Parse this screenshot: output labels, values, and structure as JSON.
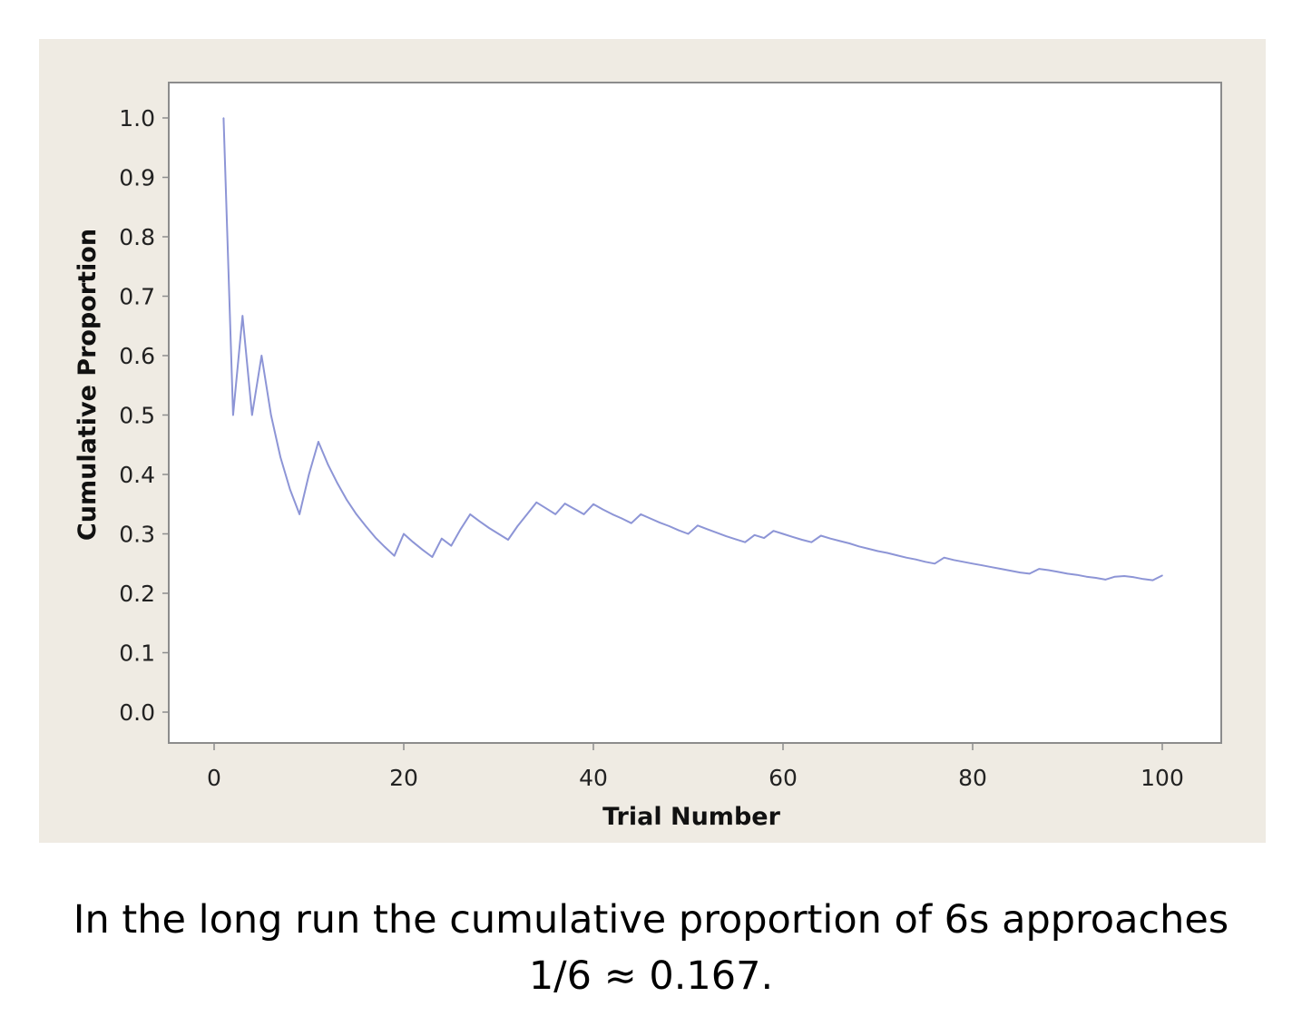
{
  "chart_data": {
    "type": "line",
    "xlabel": "Trial Number",
    "ylabel": "Cumulative Proportion",
    "xlim": [
      0,
      100
    ],
    "ylim": [
      0.0,
      1.0
    ],
    "xticks": [
      "0",
      "20",
      "40",
      "60",
      "80",
      "100"
    ],
    "yticks": [
      "0.0",
      "0.1",
      "0.2",
      "0.3",
      "0.4",
      "0.5",
      "0.6",
      "0.7",
      "0.8",
      "0.9",
      "1.0"
    ],
    "grid": false,
    "series": [
      {
        "color": "#8d95d6",
        "x": [
          1,
          2,
          3,
          4,
          5,
          6,
          7,
          8,
          9,
          10,
          11,
          12,
          13,
          14,
          15,
          16,
          17,
          18,
          19,
          20,
          21,
          22,
          23,
          24,
          25,
          26,
          27,
          28,
          29,
          30,
          31,
          32,
          33,
          34,
          35,
          36,
          37,
          38,
          39,
          40,
          41,
          42,
          43,
          44,
          45,
          46,
          47,
          48,
          49,
          50,
          51,
          52,
          53,
          54,
          55,
          56,
          57,
          58,
          59,
          60,
          61,
          62,
          63,
          64,
          65,
          66,
          67,
          68,
          69,
          70,
          71,
          72,
          73,
          74,
          75,
          76,
          77,
          78,
          79,
          80,
          81,
          82,
          83,
          84,
          85,
          86,
          87,
          88,
          89,
          90,
          91,
          92,
          93,
          94,
          95,
          96,
          97,
          98,
          99,
          100
        ],
        "y": [
          1.0,
          0.5,
          0.667,
          0.5,
          0.6,
          0.5,
          0.429,
          0.375,
          0.333,
          0.4,
          0.455,
          0.417,
          0.385,
          0.357,
          0.333,
          0.313,
          0.294,
          0.278,
          0.263,
          0.3,
          0.286,
          0.273,
          0.261,
          0.292,
          0.28,
          0.308,
          0.333,
          0.321,
          0.31,
          0.3,
          0.29,
          0.313,
          0.333,
          0.353,
          0.343,
          0.333,
          0.351,
          0.342,
          0.333,
          0.35,
          0.341,
          0.333,
          0.326,
          0.318,
          0.333,
          0.326,
          0.319,
          0.313,
          0.306,
          0.3,
          0.314,
          0.308,
          0.302,
          0.296,
          0.291,
          0.286,
          0.298,
          0.293,
          0.305,
          0.3,
          0.295,
          0.29,
          0.286,
          0.297,
          0.292,
          0.288,
          0.284,
          0.279,
          0.275,
          0.271,
          0.268,
          0.264,
          0.26,
          0.257,
          0.253,
          0.25,
          0.26,
          0.256,
          0.253,
          0.25,
          0.247,
          0.244,
          0.241,
          0.238,
          0.235,
          0.233,
          0.241,
          0.239,
          0.236,
          0.233,
          0.231,
          0.228,
          0.226,
          0.223,
          0.228,
          0.229,
          0.227,
          0.224,
          0.222,
          0.23
        ]
      }
    ]
  },
  "caption": {
    "line1": "In the long run the cumulative proportion of 6s approaches",
    "line2": "1/6 ≈ 0.167."
  }
}
